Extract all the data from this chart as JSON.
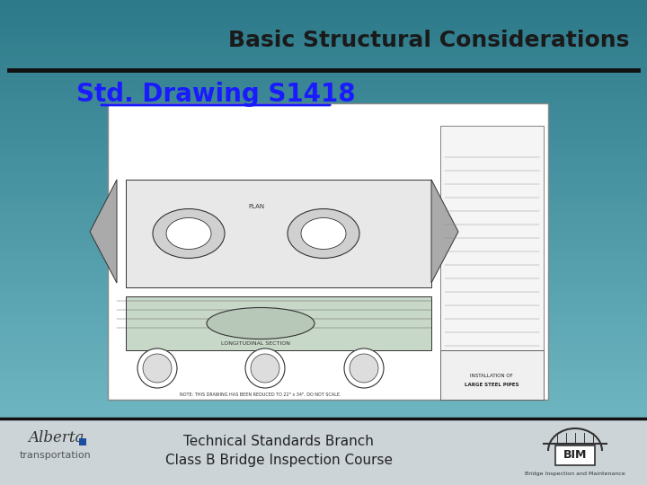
{
  "title": "Basic Structural Considerations",
  "subtitle": "Std. Drawing S1418",
  "footer_text_line1": "Technical Standards Branch",
  "footer_text_line2": "Class B Bridge Inspection Course",
  "bg_color_top": "#2d7a8a",
  "bg_color_bottom": "#78bfca",
  "title_color": "#1a1a1a",
  "subtitle_color": "#1a1aff",
  "footer_bg_color": "#ccd4d8",
  "separator_color": "#111111",
  "title_fontsize": 18,
  "subtitle_fontsize": 20,
  "footer_fontsize": 11
}
